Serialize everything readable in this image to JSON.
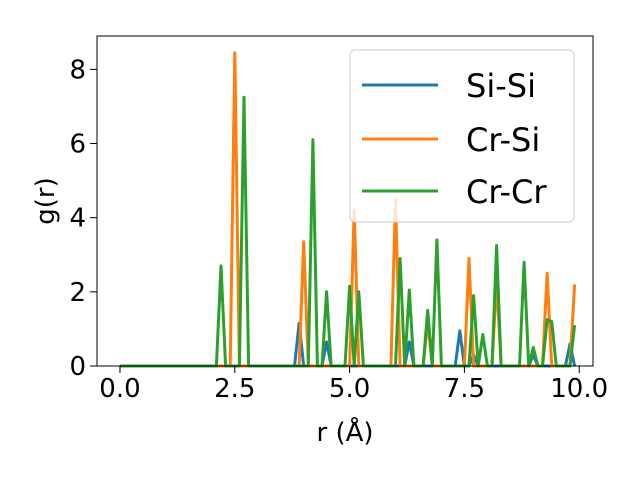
{
  "chart_data": {
    "type": "line",
    "title": "",
    "xlabel": "r (Å)",
    "ylabel": "g(r)",
    "xlim": [
      -0.5,
      10.3
    ],
    "ylim": [
      0,
      8.9
    ],
    "xticks": [
      0.0,
      2.5,
      5.0,
      7.5,
      10.0
    ],
    "xtick_labels": [
      "0.0",
      "2.5",
      "5.0",
      "7.5",
      "10.0"
    ],
    "yticks": [
      0,
      2,
      4,
      6,
      8
    ],
    "ytick_labels": [
      "0",
      "2",
      "4",
      "6",
      "8"
    ],
    "grid": false,
    "legend_position": "top-right",
    "series": [
      {
        "name": "Si-Si",
        "color": "#1f77b4",
        "points": [
          [
            0,
            0
          ],
          [
            3.8,
            0
          ],
          [
            3.9,
            1.15
          ],
          [
            4.0,
            0
          ],
          [
            4.4,
            0
          ],
          [
            4.5,
            0.65
          ],
          [
            4.6,
            0
          ],
          [
            6.2,
            0
          ],
          [
            6.3,
            0.65
          ],
          [
            6.4,
            0
          ],
          [
            7.3,
            0
          ],
          [
            7.4,
            0.95
          ],
          [
            7.5,
            0
          ],
          [
            7.6,
            0
          ],
          [
            7.7,
            0.3
          ],
          [
            7.8,
            0
          ],
          [
            8.9,
            0
          ],
          [
            9.0,
            0.3
          ],
          [
            9.1,
            0
          ],
          [
            9.7,
            0
          ],
          [
            9.8,
            0.6
          ],
          [
            9.9,
            0
          ]
        ]
      },
      {
        "name": "Cr-Si",
        "color": "#ff7f0e",
        "points": [
          [
            0,
            0
          ],
          [
            2.4,
            0
          ],
          [
            2.5,
            8.45
          ],
          [
            2.6,
            0
          ],
          [
            3.9,
            0
          ],
          [
            4.0,
            3.35
          ],
          [
            4.1,
            0
          ],
          [
            5.0,
            0
          ],
          [
            5.1,
            4.2
          ],
          [
            5.2,
            0
          ],
          [
            5.9,
            0
          ],
          [
            6.0,
            4.5
          ],
          [
            6.1,
            0
          ],
          [
            6.6,
            0
          ],
          [
            6.7,
            1.2
          ],
          [
            6.8,
            0
          ],
          [
            7.5,
            0
          ],
          [
            7.6,
            2.9
          ],
          [
            7.7,
            0
          ],
          [
            8.1,
            0
          ],
          [
            8.2,
            2.3
          ],
          [
            8.3,
            0
          ],
          [
            9.2,
            0
          ],
          [
            9.3,
            2.5
          ],
          [
            9.4,
            0
          ],
          [
            9.8,
            0
          ],
          [
            9.9,
            2.2
          ]
        ]
      },
      {
        "name": "Cr-Cr",
        "color": "#2ca02c",
        "points": [
          [
            0,
            0
          ],
          [
            2.1,
            0
          ],
          [
            2.2,
            2.7
          ],
          [
            2.3,
            0
          ],
          [
            2.6,
            0
          ],
          [
            2.7,
            7.25
          ],
          [
            2.8,
            0
          ],
          [
            4.1,
            0
          ],
          [
            4.2,
            6.1
          ],
          [
            4.3,
            0
          ],
          [
            4.4,
            0
          ],
          [
            4.5,
            2.0
          ],
          [
            4.6,
            0
          ],
          [
            4.9,
            0
          ],
          [
            5.0,
            2.15
          ],
          [
            5.1,
            0
          ],
          [
            5.2,
            2.0
          ],
          [
            5.3,
            0
          ],
          [
            6.0,
            0
          ],
          [
            6.1,
            2.9
          ],
          [
            6.2,
            0
          ],
          [
            6.3,
            2.05
          ],
          [
            6.4,
            0
          ],
          [
            6.6,
            0
          ],
          [
            6.7,
            1.5
          ],
          [
            6.8,
            0
          ],
          [
            6.9,
            3.4
          ],
          [
            7.0,
            0
          ],
          [
            7.6,
            0
          ],
          [
            7.7,
            1.9
          ],
          [
            7.8,
            0
          ],
          [
            7.9,
            0.85
          ],
          [
            8.0,
            0
          ],
          [
            8.1,
            0
          ],
          [
            8.2,
            3.25
          ],
          [
            8.3,
            0
          ],
          [
            8.7,
            0
          ],
          [
            8.8,
            2.8
          ],
          [
            8.9,
            0
          ],
          [
            9.0,
            0.5
          ],
          [
            9.1,
            0
          ],
          [
            9.2,
            0
          ],
          [
            9.3,
            1.25
          ],
          [
            9.4,
            1.2
          ],
          [
            9.5,
            0
          ],
          [
            9.8,
            0
          ],
          [
            9.9,
            1.1
          ]
        ]
      }
    ]
  }
}
